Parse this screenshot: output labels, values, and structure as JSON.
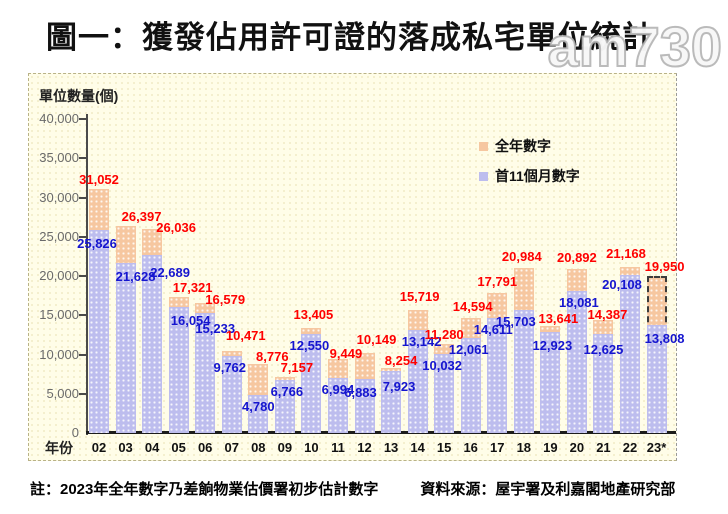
{
  "page": {
    "title": "圖一：獲發佔用許可證的落成私宅單位統計",
    "watermark": "am730",
    "note": "註：2023年全年數字乃差餉物業估價署初步估計數字",
    "source": "資料來源：屋宇署及利嘉閣地產研究部"
  },
  "chart_data": {
    "type": "bar",
    "title": "圖一：獲發佔用許可證的落成私宅單位統計",
    "ylabel": "單位數量(個)",
    "xlabel": "年份",
    "ylim": [
      0,
      40000
    ],
    "ytick_step": 5000,
    "ytick_labels": [
      "40,000",
      "35,000",
      "30,000",
      "25,000",
      "20,000",
      "15,000",
      "10,000",
      "5,000",
      "0"
    ],
    "grid": false,
    "legend_position": "upper-right-inside",
    "categories": [
      "02",
      "03",
      "04",
      "05",
      "06",
      "07",
      "08",
      "09",
      "10",
      "11",
      "12",
      "13",
      "14",
      "15",
      "16",
      "17",
      "18",
      "19",
      "20",
      "21",
      "22",
      "23*"
    ],
    "series": [
      {
        "name": "全年數字",
        "color": "#f6c7a0",
        "values": [
          31052,
          26397,
          26036,
          17321,
          16579,
          10471,
          8776,
          7157,
          13405,
          9449,
          10149,
          8254,
          15719,
          11280,
          14594,
          17791,
          20984,
          13641,
          20892,
          14387,
          21168,
          19950
        ]
      },
      {
        "name": "首11個月數字",
        "color": "#bdbdee",
        "values": [
          25826,
          21628,
          22689,
          16054,
          15233,
          9762,
          4780,
          6766,
          12550,
          6994,
          6883,
          7923,
          13142,
          10032,
          12061,
          14611,
          15703,
          12923,
          18081,
          12625,
          20108,
          13808
        ]
      }
    ],
    "label_colors": {
      "full_year": "#ff0000",
      "first_11_months": "#1515cf"
    },
    "annotations": {
      "estimated_category": "23*",
      "estimated_series": "全年數字",
      "estimated_style": "dashed-outline"
    },
    "label_offsets": {
      "full": [
        [
          0,
          0
        ],
        [
          16,
          0
        ],
        [
          24,
          8
        ],
        [
          14,
          0
        ],
        [
          20,
          6
        ],
        [
          14,
          -6
        ],
        [
          14,
          2
        ],
        [
          12,
          0
        ],
        [
          2,
          -4
        ],
        [
          8,
          4
        ],
        [
          12,
          -4
        ],
        [
          10,
          2
        ],
        [
          2,
          -4
        ],
        [
          0,
          0
        ],
        [
          2,
          -2
        ],
        [
          0,
          -2
        ],
        [
          -2,
          -2
        ],
        [
          8,
          2
        ],
        [
          0,
          -2
        ],
        [
          4,
          4
        ],
        [
          -4,
          -4
        ],
        [
          8,
          0
        ]
      ],
      "m11": [
        [
          -2,
          4
        ],
        [
          10,
          4
        ],
        [
          18,
          8
        ],
        [
          12,
          4
        ],
        [
          10,
          6
        ],
        [
          -2,
          2
        ],
        [
          0,
          2
        ],
        [
          2,
          2
        ],
        [
          -2,
          2
        ],
        [
          0,
          2
        ],
        [
          -4,
          4
        ],
        [
          8,
          6
        ],
        [
          4,
          2
        ],
        [
          -2,
          2
        ],
        [
          -2,
          2
        ],
        [
          -4,
          2
        ],
        [
          -8,
          2
        ],
        [
          2,
          4
        ],
        [
          2,
          2
        ],
        [
          0,
          6
        ],
        [
          -8,
          0
        ],
        [
          8,
          4
        ]
      ]
    }
  }
}
